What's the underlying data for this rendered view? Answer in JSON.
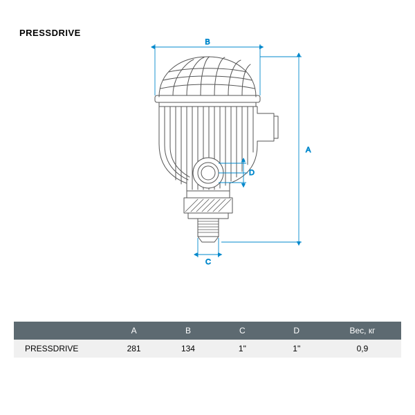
{
  "title": "PRESSDRIVE",
  "diagram": {
    "stroke_main": "#555555",
    "stroke_dim": "#0088cc",
    "stroke_width_main": 1,
    "stroke_width_dim": 0.9,
    "label_fontsize": 11,
    "dims": {
      "A": {
        "label": "A"
      },
      "B": {
        "label": "B"
      },
      "C": {
        "label": "C"
      },
      "D": {
        "label": "D"
      }
    }
  },
  "table": {
    "header_bg": "#5d6a71",
    "row_bg": "#f0f0f0",
    "columns": [
      "",
      "A",
      "B",
      "C",
      "D",
      "Вес, кг"
    ],
    "col_widths": [
      "24%",
      "14%",
      "14%",
      "14%",
      "14%",
      "20%"
    ],
    "rows": [
      [
        "PRESSDRIVE",
        "281",
        "134",
        "1\"",
        "1\"",
        "0,9"
      ]
    ]
  }
}
